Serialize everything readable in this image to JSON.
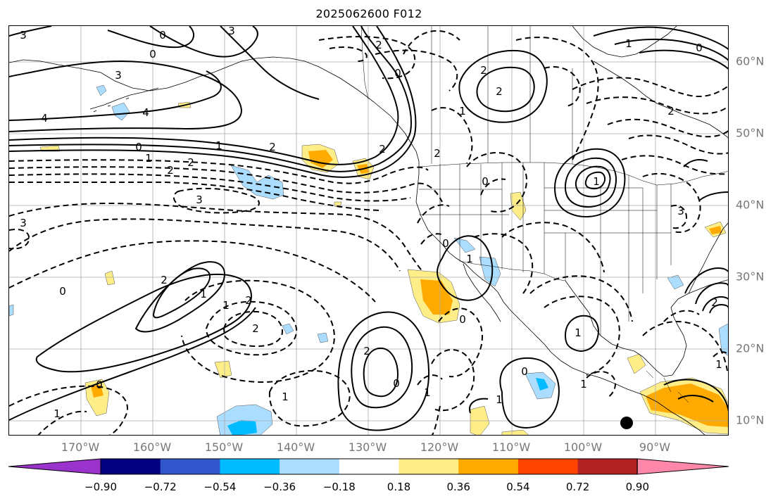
{
  "title": "2025062600 F012",
  "latitude_labels": [
    "60°N",
    "50°N",
    "40°N",
    "30°N",
    "20°N",
    "10°N"
  ],
  "longitude_labels": [
    "170°W",
    "160°W",
    "150°W",
    "140°W",
    "130°W",
    "120°W",
    "110°W",
    "100°W",
    "90°W"
  ],
  "colorbar": {
    "colors": [
      "#9933cc",
      "#000080",
      "#3355cc",
      "#00bbff",
      "#aaddff",
      "#ffffff",
      "#ffee88",
      "#ffaa00",
      "#ff4400",
      "#b22222",
      "#ff88aa"
    ],
    "tick_labels": [
      "−0.90",
      "−0.72",
      "−0.54",
      "−0.36",
      "−0.18",
      "0.18",
      "0.36",
      "0.54",
      "0.72",
      "0.90"
    ],
    "extend": "both"
  },
  "contour_labels": [
    {
      "id": "l1",
      "text": "3"
    },
    {
      "id": "l2",
      "text": "0"
    },
    {
      "id": "l3",
      "text": "3"
    },
    {
      "id": "l4",
      "text": "0"
    },
    {
      "id": "l5",
      "text": "3"
    },
    {
      "id": "l6",
      "text": "4"
    },
    {
      "id": "l7",
      "text": "4"
    },
    {
      "id": "l8",
      "text": "0"
    },
    {
      "id": "l9",
      "text": "1"
    },
    {
      "id": "l10",
      "text": "1"
    },
    {
      "id": "l11",
      "text": "2"
    },
    {
      "id": "l12",
      "text": "2"
    },
    {
      "id": "l13",
      "text": "2"
    },
    {
      "id": "l14",
      "text": "3"
    },
    {
      "id": "l15",
      "text": "3"
    },
    {
      "id": "l16",
      "text": "2"
    },
    {
      "id": "l17",
      "text": "0"
    },
    {
      "id": "l18",
      "text": "2"
    },
    {
      "id": "l19",
      "text": "2"
    },
    {
      "id": "l20",
      "text": "1"
    },
    {
      "id": "l21",
      "text": "2"
    },
    {
      "id": "l22",
      "text": "0"
    },
    {
      "id": "l23",
      "text": "1"
    },
    {
      "id": "l24",
      "text": "1"
    },
    {
      "id": "l25",
      "text": "2"
    },
    {
      "id": "l26",
      "text": "3"
    },
    {
      "id": "l27",
      "text": "2"
    },
    {
      "id": "l28",
      "text": "0"
    },
    {
      "id": "l29",
      "text": "2"
    },
    {
      "id": "l30",
      "text": "1"
    },
    {
      "id": "l31",
      "text": "0"
    },
    {
      "id": "l32",
      "text": "2"
    },
    {
      "id": "l33",
      "text": "1"
    },
    {
      "id": "l34",
      "text": "2"
    },
    {
      "id": "l35",
      "text": "1"
    },
    {
      "id": "l36",
      "text": "2"
    },
    {
      "id": "l37",
      "text": "0"
    },
    {
      "id": "l38",
      "text": "1"
    },
    {
      "id": "l39",
      "text": "0"
    },
    {
      "id": "l40",
      "text": "1"
    },
    {
      "id": "l41",
      "text": "0"
    },
    {
      "id": "l42",
      "text": "1"
    },
    {
      "id": "l43",
      "text": "0"
    },
    {
      "id": "l44",
      "text": "1"
    },
    {
      "id": "l45",
      "text": "1"
    },
    {
      "id": "l46",
      "text": "0"
    },
    {
      "id": "l47",
      "text": "2"
    },
    {
      "id": "l48",
      "text": "1"
    },
    {
      "id": "l49",
      "text": "1"
    }
  ]
}
